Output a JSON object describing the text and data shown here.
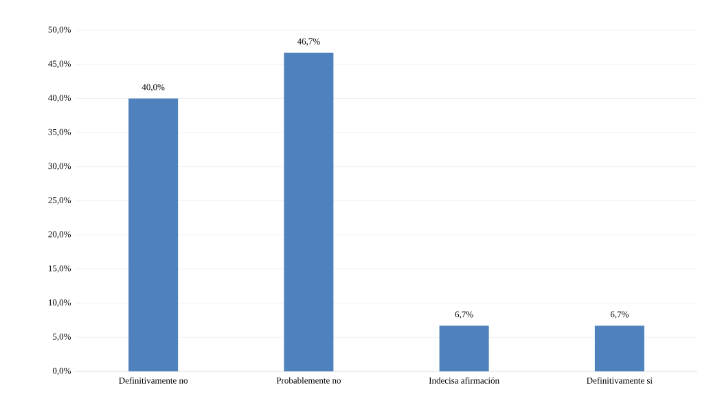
{
  "chart_data": {
    "type": "bar",
    "categories": [
      "Definitivamente no",
      "Probablemente no",
      "Indecisa afirmación",
      "Definitivamente si"
    ],
    "values": [
      40.0,
      46.7,
      6.7,
      6.7
    ],
    "value_labels": [
      "40,0%",
      "46,7%",
      "6,7%",
      "6,7%"
    ],
    "color": "#4f81bd",
    "ylim": [
      0,
      50
    ],
    "yticks": [
      {
        "value": 0,
        "label": "0,0%"
      },
      {
        "value": 5,
        "label": "5,0%"
      },
      {
        "value": 10,
        "label": "10,0%"
      },
      {
        "value": 15,
        "label": "15,0%"
      },
      {
        "value": 20,
        "label": "20,0%"
      },
      {
        "value": 25,
        "label": "25,0%"
      },
      {
        "value": 30,
        "label": "30,0%"
      },
      {
        "value": 35,
        "label": "35,0%"
      },
      {
        "value": 40,
        "label": "40,0%"
      },
      {
        "value": 45,
        "label": "45,0%"
      },
      {
        "value": 50,
        "label": "50,0%"
      }
    ],
    "grid": "y"
  }
}
